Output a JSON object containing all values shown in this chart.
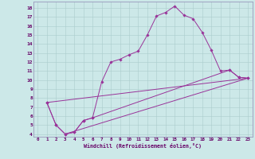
{
  "xlabel": "Windchill (Refroidissement éolien,°C)",
  "bg_color": "#cce8e8",
  "line_color": "#993399",
  "grid_color": "#aacccc",
  "text_color": "#660066",
  "spine_color": "#9999bb",
  "xlim": [
    -0.5,
    23.5
  ],
  "ylim": [
    3.7,
    18.7
  ],
  "xticks": [
    0,
    1,
    2,
    3,
    4,
    5,
    6,
    7,
    8,
    9,
    10,
    11,
    12,
    13,
    14,
    15,
    16,
    17,
    18,
    19,
    20,
    21,
    22,
    23
  ],
  "yticks": [
    4,
    5,
    6,
    7,
    8,
    9,
    10,
    11,
    12,
    13,
    14,
    15,
    16,
    17,
    18
  ],
  "curve1_x": [
    1,
    2,
    3,
    4,
    5,
    6,
    7,
    8,
    9,
    10,
    11,
    12,
    13,
    14,
    15,
    16,
    17,
    18,
    19,
    20,
    21,
    22,
    23
  ],
  "curve1_y": [
    7.5,
    5.0,
    4.0,
    4.2,
    5.5,
    5.8,
    9.8,
    12.0,
    12.3,
    12.8,
    13.2,
    15.0,
    17.1,
    17.5,
    18.2,
    17.2,
    16.8,
    15.3,
    13.3,
    11.0,
    11.1,
    10.3,
    10.2
  ],
  "curve2_x": [
    1,
    2,
    3,
    4,
    5,
    6,
    21,
    22,
    23
  ],
  "curve2_y": [
    7.5,
    5.0,
    4.0,
    4.2,
    5.5,
    5.8,
    11.1,
    10.3,
    10.2
  ],
  "line3_x": [
    1,
    23
  ],
  "line3_y": [
    7.5,
    10.2
  ],
  "line4_x": [
    3,
    23
  ],
  "line4_y": [
    4.0,
    10.2
  ],
  "marker": "D",
  "markersize": 1.8,
  "linewidth": 0.7
}
